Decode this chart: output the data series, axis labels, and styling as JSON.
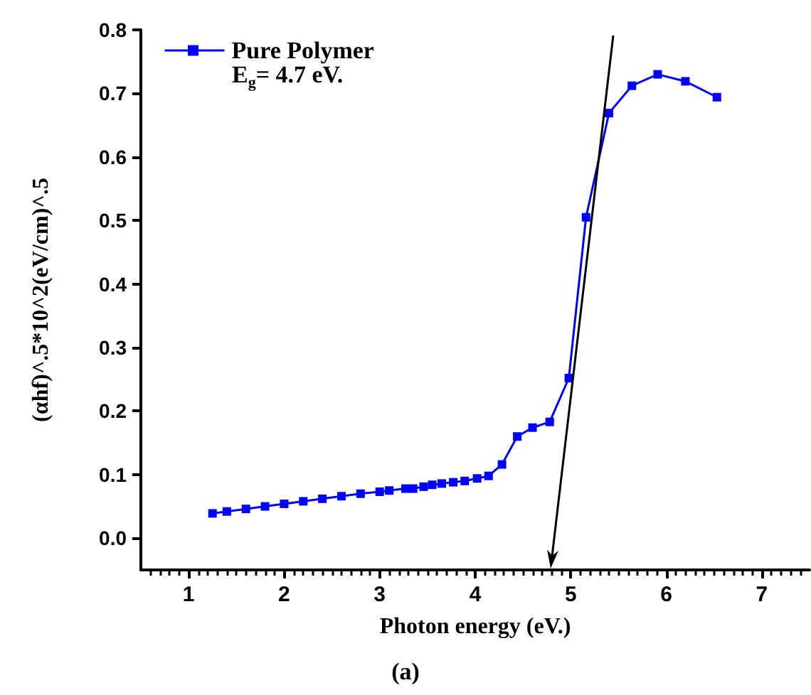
{
  "chart_data": {
    "type": "line",
    "xlabel": "Photon energy (eV.)",
    "ylabel": "(αhf)^.5*10^2(eV/cm)^.5",
    "annotations": [
      "E$_{g}$= 4.7 eV.",
      "(a)"
    ],
    "x": [
      1.25,
      1.4,
      1.6,
      1.8,
      2.0,
      2.2,
      2.4,
      2.6,
      2.8,
      3.0,
      3.1,
      3.27,
      3.35,
      3.46,
      3.55,
      3.65,
      3.77,
      3.89,
      4.02,
      4.14,
      4.28,
      4.44,
      4.6,
      4.78,
      4.98,
      5.16,
      5.4,
      5.64,
      5.91,
      6.2,
      6.53
    ],
    "series": [
      {
        "name": "Pure Polymer",
        "color": "#0000ff",
        "marker": "square",
        "values": [
          0.039,
          0.042,
          0.046,
          0.05,
          0.054,
          0.058,
          0.062,
          0.066,
          0.07,
          0.073,
          0.075,
          0.078,
          0.078,
          0.081,
          0.084,
          0.086,
          0.088,
          0.09,
          0.094,
          0.098,
          0.116,
          0.16,
          0.174,
          0.183,
          0.252,
          0.505,
          0.669,
          0.712,
          0.73,
          0.719,
          0.694
        ]
      }
    ],
    "xlim": [
      0.5,
      7.5
    ],
    "xticks": [
      1,
      2,
      3,
      4,
      5,
      6,
      7
    ],
    "ylim": [
      -0.05,
      0.8
    ],
    "yticks": [
      {
        "value": 0,
        "label": "0.0"
      },
      0.1,
      0.2,
      0.3,
      0.4,
      0.5,
      0.6,
      0.7,
      0.8
    ],
    "grid": false,
    "legend": "top left"
  }
}
